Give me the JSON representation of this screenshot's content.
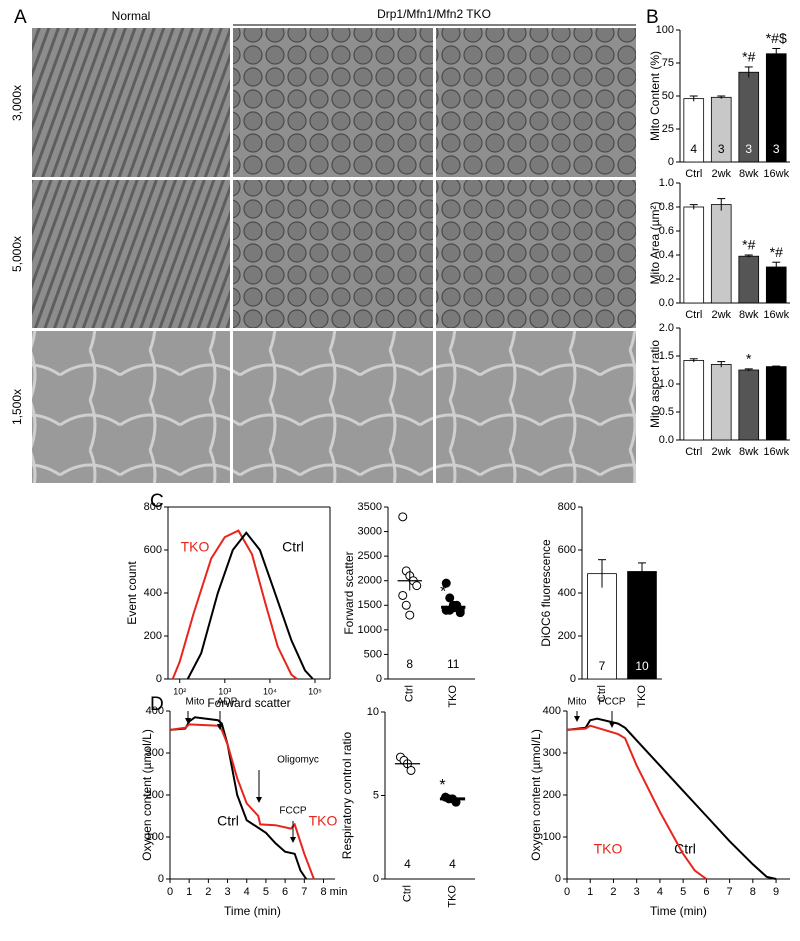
{
  "panel_labels": [
    "A",
    "B",
    "C",
    "D"
  ],
  "micrographs": {
    "column_headers": [
      "Normal",
      "Drp1/Mfn1/Mfn2 TKO"
    ],
    "row_labels": [
      "3,000x",
      "5,000x",
      "1,500x"
    ]
  },
  "chart_data": [
    {
      "type": "bar",
      "ylabel": "Mito Content (%)",
      "categories": [
        "Ctrl",
        "2wk",
        "8wk",
        "16wk"
      ],
      "values": [
        48,
        49,
        68,
        82
      ],
      "errors": [
        2,
        1,
        4,
        4
      ],
      "colors": [
        "#ffffff",
        "#c8c8c8",
        "#555555",
        "#000000"
      ],
      "n": [
        4,
        3,
        3,
        3
      ],
      "significance": [
        null,
        null,
        "*#",
        "*#$"
      ],
      "ylim": [
        0,
        100
      ],
      "yticks": [
        0,
        25,
        50,
        75,
        100
      ]
    },
    {
      "type": "bar",
      "ylabel": "Mito Area (µm²)",
      "categories": [
        "Ctrl",
        "2wk",
        "8wk",
        "16wk"
      ],
      "values": [
        0.8,
        0.82,
        0.39,
        0.3
      ],
      "errors": [
        0.02,
        0.05,
        0.01,
        0.04
      ],
      "colors": [
        "#ffffff",
        "#c8c8c8",
        "#555555",
        "#000000"
      ],
      "significance": [
        null,
        null,
        "*#",
        "*#"
      ],
      "ylim": [
        0,
        1
      ],
      "yticks": [
        {
          "value": 0,
          "label": "0.0"
        },
        0.2,
        0.4,
        0.6,
        0.8,
        {
          "value": 1,
          "label": "1.0"
        }
      ]
    },
    {
      "type": "bar",
      "ylabel": "Mito aspect ratio",
      "categories": [
        "Ctrl",
        "2wk",
        "8wk",
        "16wk"
      ],
      "values": [
        1.42,
        1.35,
        1.25,
        1.31
      ],
      "errors": [
        0.03,
        0.05,
        0.02,
        0.01
      ],
      "colors": [
        "#ffffff",
        "#c8c8c8",
        "#555555",
        "#000000"
      ],
      "significance": [
        null,
        null,
        "*",
        null
      ],
      "ylim": [
        0,
        2
      ],
      "yticks": [
        {
          "value": 0,
          "label": "0.0"
        },
        0.5,
        {
          "value": 1,
          "label": "1.0"
        },
        1.5,
        {
          "value": 2,
          "label": "2.0"
        }
      ]
    },
    {
      "type": "line",
      "xscale": "log",
      "xlabel": "Forward scatter",
      "ylabel": "Event count",
      "series": [
        {
          "name": "TKO",
          "color": "#e8251c",
          "x": [
            70,
            100,
            200,
            500,
            1000,
            2000,
            4000,
            8000,
            15000,
            30000,
            40000
          ],
          "values": [
            0,
            80,
            300,
            560,
            660,
            690,
            580,
            350,
            150,
            20,
            0
          ]
        },
        {
          "name": "Ctrl",
          "color": "#000000",
          "x": [
            150,
            300,
            700,
            1500,
            3000,
            6000,
            12000,
            30000,
            60000,
            90000
          ],
          "values": [
            0,
            120,
            400,
            600,
            680,
            600,
            420,
            180,
            40,
            0
          ]
        }
      ],
      "xlim": [
        55,
        215000
      ],
      "xticks": [
        {
          "value": 100,
          "label": "10²"
        },
        {
          "value": 1000,
          "label": "10³"
        },
        {
          "value": 10000,
          "label": "10⁴"
        },
        {
          "value": 100000,
          "label": "10⁵"
        }
      ],
      "ylim": [
        0,
        800
      ],
      "yticks": [
        0,
        200,
        400,
        600,
        800
      ]
    },
    {
      "type": "dot",
      "ylabel": "Forward scatter",
      "categories": [
        "Ctrl",
        "TKO"
      ],
      "points": [
        [
          3300,
          2200,
          2100,
          2000,
          1900,
          1700,
          1500,
          1300
        ],
        [
          1950,
          1650,
          1500,
          1450,
          1400,
          1400,
          1400,
          1450,
          1500,
          1350,
          1400
        ]
      ],
      "point_fills": [
        "#ffffff",
        "#000000"
      ],
      "means": [
        2000,
        1460
      ],
      "errors": [
        200,
        60
      ],
      "n": [
        8,
        11
      ],
      "significance": [
        null,
        "*"
      ],
      "ylim": [
        0,
        3500
      ],
      "yticks": [
        0,
        500,
        1000,
        1500,
        2000,
        2500,
        3000,
        3500
      ]
    },
    {
      "type": "bar",
      "ylabel": "DiOC6 fluorescence",
      "categories": [
        "Ctrl",
        "TKO"
      ],
      "values": [
        490,
        500
      ],
      "errors": [
        65,
        40
      ],
      "colors": [
        "#ffffff",
        "#000000"
      ],
      "n": [
        7,
        10
      ],
      "ylim": [
        0,
        800
      ],
      "yticks": [
        0,
        200,
        400,
        600,
        800
      ]
    },
    {
      "type": "line",
      "xlabel": "Time (min)",
      "ylabel": "Oxygen content (µmol/L)",
      "series": [
        {
          "name": "Ctrl",
          "color": "#000000",
          "x": [
            0,
            0.8,
            1,
            1.3,
            2.5,
            2.7,
            3,
            3.5,
            4,
            5,
            5.5,
            6,
            6.5,
            6.8,
            7.1
          ],
          "values": [
            355,
            358,
            375,
            385,
            378,
            370,
            320,
            200,
            140,
            110,
            85,
            65,
            60,
            20,
            0
          ]
        },
        {
          "name": "TKO",
          "color": "#e8251c",
          "x": [
            0,
            0.8,
            1,
            2.5,
            2.7,
            3,
            3.5,
            4,
            4.6,
            4.7,
            5.5,
            6.3,
            6.5,
            7,
            7.5
          ],
          "values": [
            355,
            360,
            368,
            365,
            355,
            320,
            240,
            180,
            150,
            130,
            128,
            120,
            130,
            60,
            0
          ]
        }
      ],
      "annotations": [
        "Mito",
        "ADP",
        "Oligomyc",
        "FCCP"
      ],
      "xlim": [
        0,
        8.6
      ],
      "xticks": [
        0,
        1,
        2,
        3,
        4,
        5,
        6,
        7,
        {
          "value": 8,
          "label": "8 min"
        }
      ],
      "ylim": [
        0,
        400
      ],
      "yticks": [
        0,
        100,
        200,
        300,
        400
      ]
    },
    {
      "type": "dot",
      "ylabel": "Respiratory control ratio",
      "categories": [
        "Ctrl",
        "TKO"
      ],
      "points": [
        [
          7.3,
          7.1,
          6.9,
          6.5
        ],
        [
          4.9,
          4.8,
          4.8,
          4.6
        ]
      ],
      "point_fills": [
        "#ffffff",
        "#000000"
      ],
      "means": [
        6.9,
        4.8
      ],
      "errors": [
        0.25,
        0.05
      ],
      "n": [
        4,
        4
      ],
      "significance": [
        null,
        "*"
      ],
      "ylim": [
        0,
        10
      ],
      "yticks": [
        0,
        5,
        10
      ]
    },
    {
      "type": "line",
      "xlabel": "Time (min)",
      "ylabel": "Oxygen content (µmol/L)",
      "series": [
        {
          "name": "Ctrl",
          "color": "#000000",
          "x": [
            0,
            0.8,
            1,
            1.3,
            2.2,
            2.5,
            3,
            4,
            5,
            6,
            7,
            8,
            8.6,
            9
          ],
          "values": [
            355,
            360,
            378,
            382,
            370,
            360,
            330,
            270,
            210,
            150,
            90,
            35,
            5,
            0
          ]
        },
        {
          "name": "TKO",
          "color": "#e8251c",
          "x": [
            0,
            0.8,
            1,
            2.2,
            2.5,
            3,
            4,
            5,
            5.5,
            6
          ],
          "values": [
            355,
            358,
            365,
            345,
            335,
            270,
            160,
            60,
            20,
            0
          ]
        }
      ],
      "annotations": [
        "Mito",
        "FCCP"
      ],
      "xlim": [
        0,
        9.6
      ],
      "xticks": [
        0,
        1,
        2,
        3,
        4,
        5,
        6,
        7,
        8,
        9
      ],
      "ylim": [
        0,
        400
      ],
      "yticks": [
        0,
        100,
        200,
        300,
        400
      ]
    }
  ]
}
